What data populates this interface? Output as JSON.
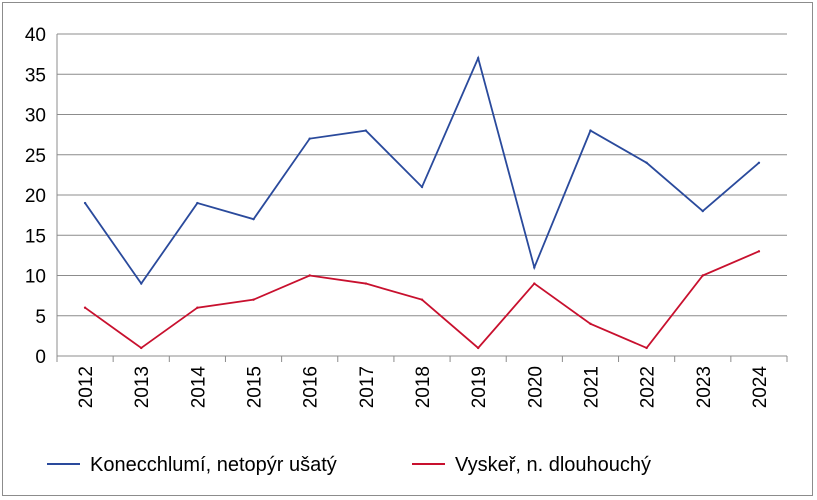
{
  "chart_data": {
    "type": "line",
    "title": "",
    "xlabel": "",
    "ylabel": "",
    "x": [
      "2012",
      "2013",
      "2014",
      "2015",
      "2016",
      "2017",
      "2018",
      "2019",
      "2020",
      "2021",
      "2022",
      "2023",
      "2024"
    ],
    "ylim": [
      0,
      40
    ],
    "yticks": [
      0,
      5,
      10,
      15,
      20,
      25,
      30,
      35,
      40
    ],
    "grid": true,
    "legend_position": "bottom",
    "series": [
      {
        "name": "Konecchlumí, netopýr ušatý",
        "color": "#2a4a9c",
        "values": [
          19,
          9,
          19,
          17,
          27,
          28,
          21,
          37,
          11,
          28,
          24,
          18,
          24
        ]
      },
      {
        "name": "Vyskeř, n. dlouhouchý",
        "color": "#c8102e",
        "values": [
          6,
          1,
          6,
          7,
          10,
          9,
          7,
          1,
          9,
          4,
          1,
          10,
          13
        ]
      }
    ]
  }
}
